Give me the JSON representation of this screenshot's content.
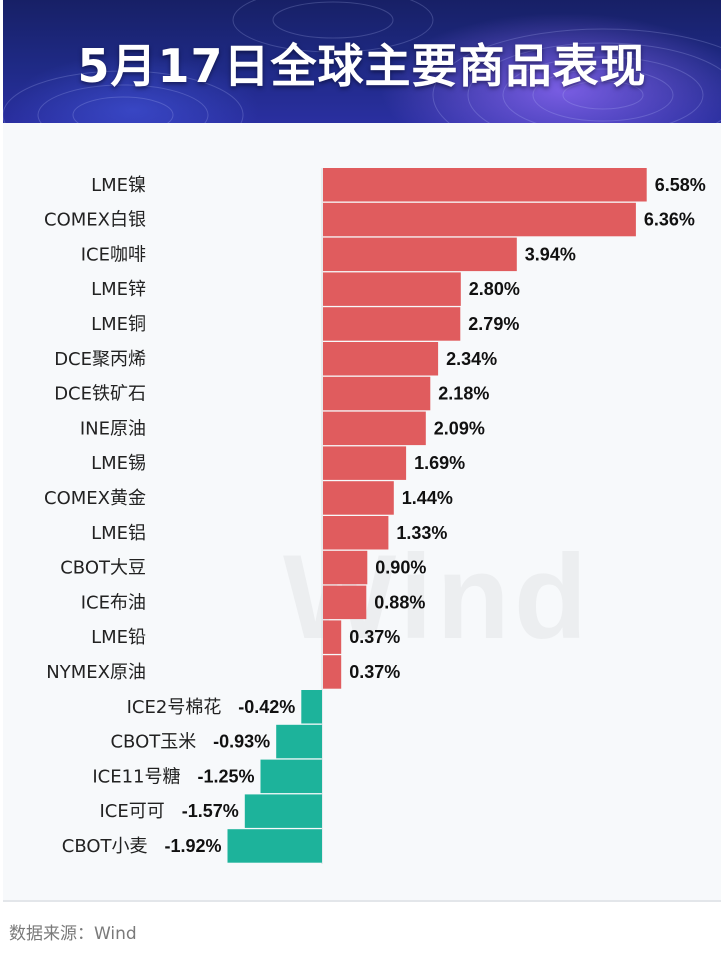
{
  "header": {
    "title": "5月17日全球主要商品表现"
  },
  "watermark": "Wind",
  "footer": {
    "source": "数据来源：Wind"
  },
  "colors": {
    "positive": "#e05c5e",
    "negative": "#1db39b"
  },
  "chart_data": {
    "type": "bar",
    "orientation": "horizontal",
    "title": "5月17日全球主要商品表现",
    "unit": "%",
    "categories": [
      "LME镍",
      "COMEX白银",
      "ICE咖啡",
      "LME锌",
      "LME铜",
      "DCE聚丙烯",
      "DCE铁矿石",
      "INE原油",
      "LME锡",
      "COMEX黄金",
      "LME铝",
      "CBOT大豆",
      "ICE布油",
      "LME铅",
      "NYMEX原油",
      "ICE2号棉花",
      "CBOT玉米",
      "ICE11号糖",
      "ICE可可",
      "CBOT小麦"
    ],
    "values": [
      6.58,
      6.36,
      3.94,
      2.8,
      2.79,
      2.34,
      2.18,
      2.09,
      1.69,
      1.44,
      1.33,
      0.9,
      0.88,
      0.37,
      0.37,
      -0.42,
      -0.93,
      -1.25,
      -1.57,
      -1.92
    ],
    "labels": [
      "6.58%",
      "6.36%",
      "3.94%",
      "2.80%",
      "2.79%",
      "2.34%",
      "2.18%",
      "2.09%",
      "1.69%",
      "1.44%",
      "1.33%",
      "0.90%",
      "0.88%",
      "0.37%",
      "0.37%",
      "-0.42%",
      "-0.93%",
      "-1.25%",
      "-1.57%",
      "-1.92%"
    ]
  }
}
